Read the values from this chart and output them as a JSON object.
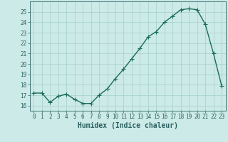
{
  "x": [
    0,
    1,
    2,
    3,
    4,
    5,
    6,
    7,
    8,
    9,
    10,
    11,
    12,
    13,
    14,
    15,
    16,
    17,
    18,
    19,
    20,
    21,
    22,
    23
  ],
  "y": [
    17.2,
    17.2,
    16.3,
    16.9,
    17.1,
    16.6,
    16.2,
    16.2,
    17.0,
    17.6,
    18.6,
    19.5,
    20.5,
    21.5,
    22.6,
    23.1,
    24.0,
    24.6,
    25.2,
    25.3,
    25.2,
    23.8,
    21.0,
    17.9
  ],
  "line_color": "#1a6b5a",
  "marker": "+",
  "marker_size": 4,
  "line_width": 1.0,
  "bg_color": "#cceae7",
  "grid_color": "#aad4d0",
  "xlabel": "Humidex (Indice chaleur)",
  "xlim": [
    -0.5,
    23.5
  ],
  "ylim": [
    15.5,
    26.0
  ],
  "yticks": [
    16,
    17,
    18,
    19,
    20,
    21,
    22,
    23,
    24,
    25
  ],
  "xtick_labels": [
    "0",
    "1",
    "2",
    "3",
    "4",
    "5",
    "6",
    "7",
    "8",
    "9",
    "10",
    "11",
    "12",
    "13",
    "14",
    "15",
    "16",
    "17",
    "18",
    "19",
    "20",
    "21",
    "22",
    "23"
  ],
  "tick_color": "#2a6060",
  "label_fontsize": 5.5,
  "axis_fontsize": 7
}
